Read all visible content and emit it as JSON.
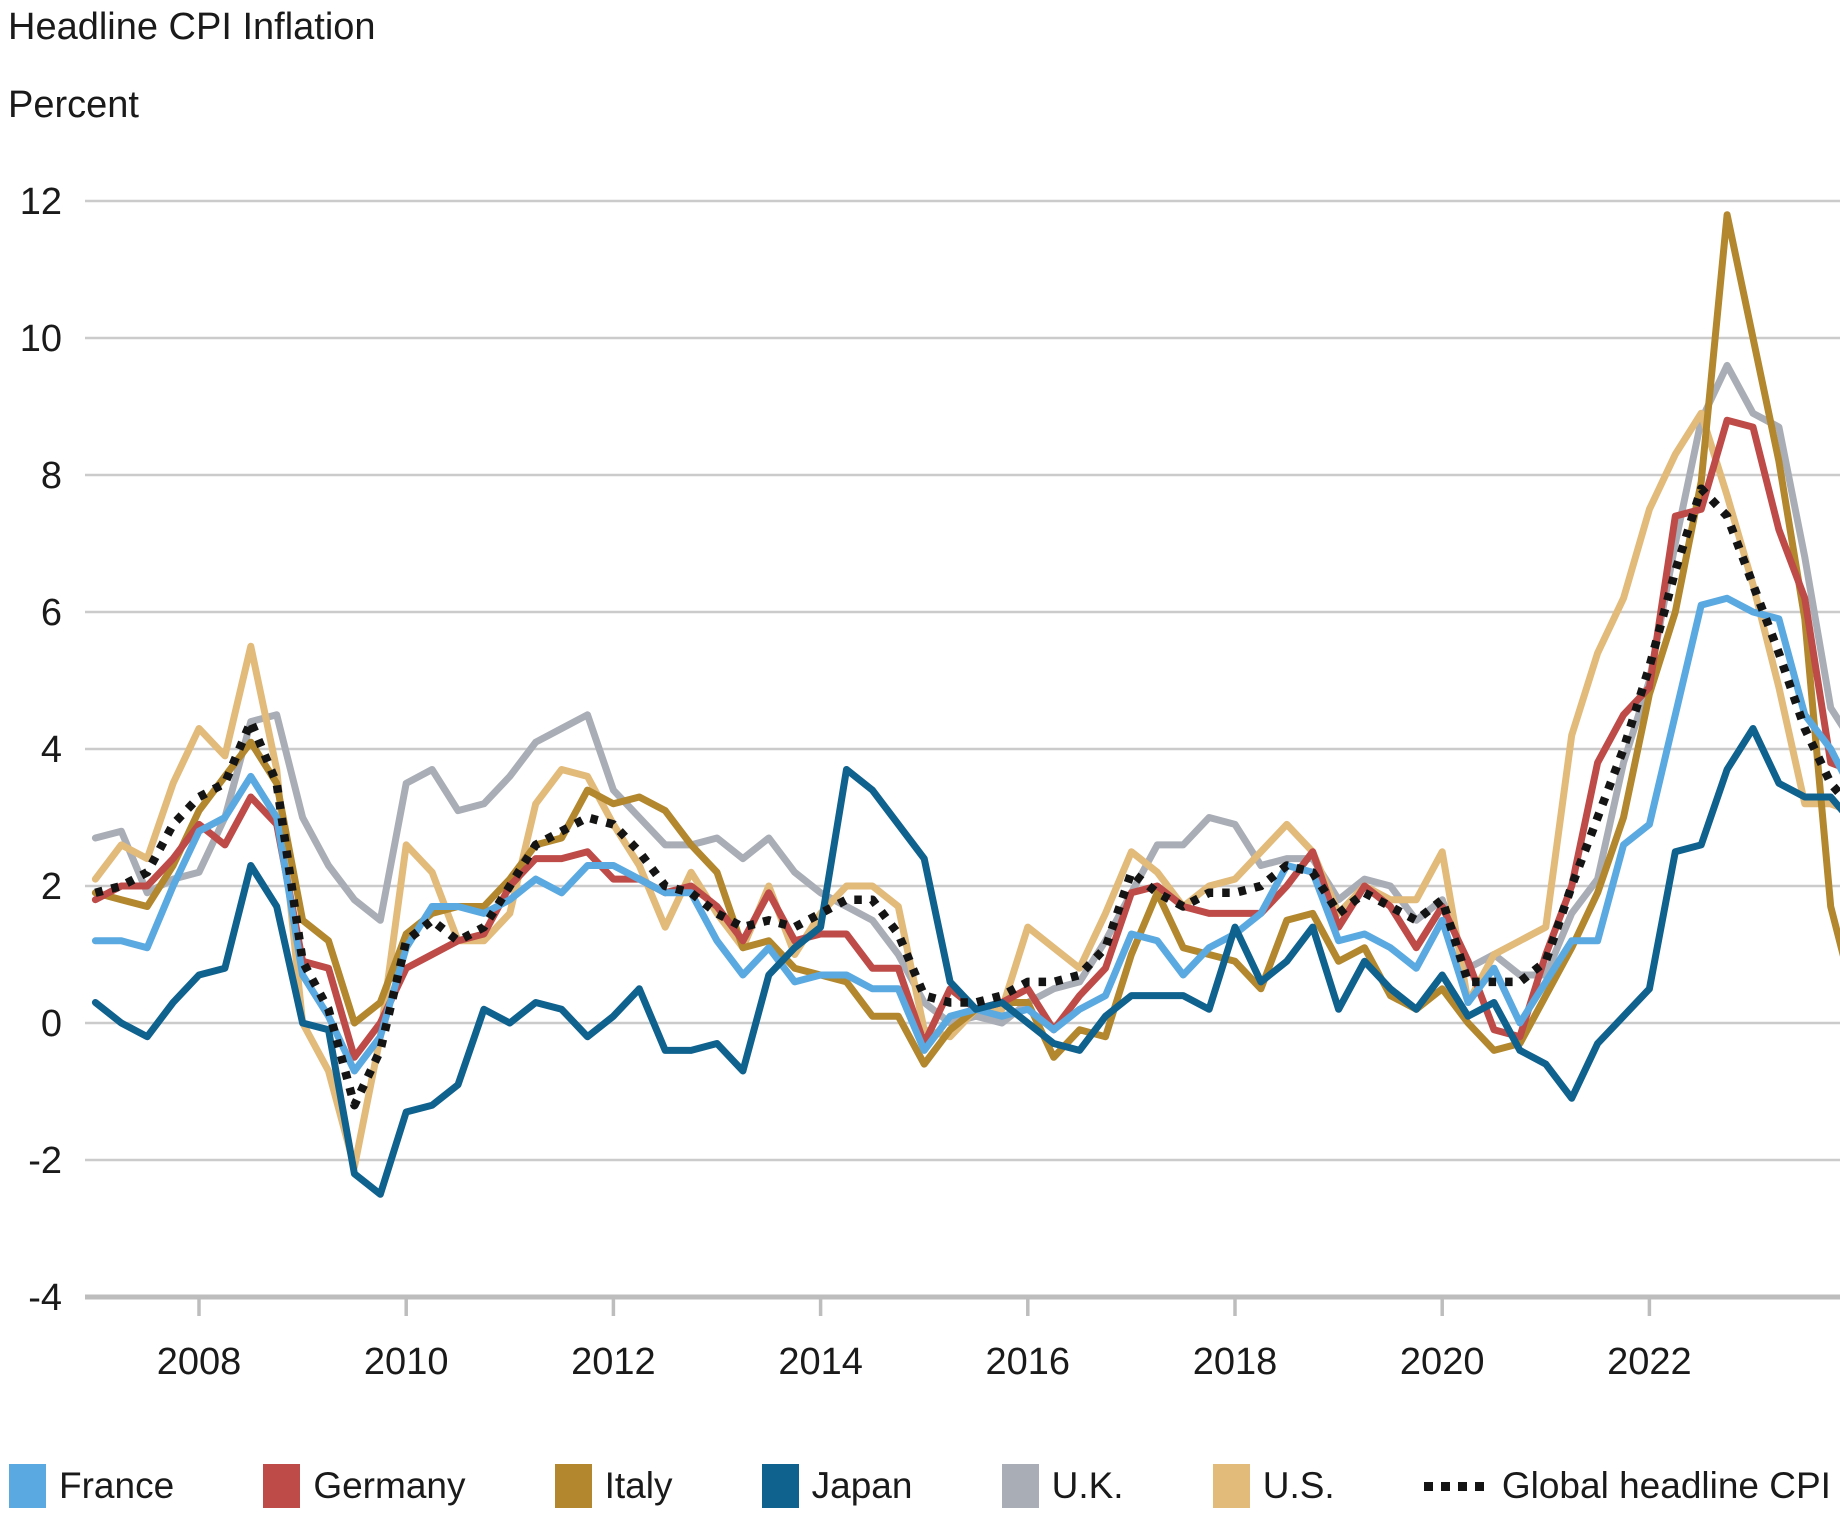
{
  "header": {
    "title": "Headline CPI Inflation",
    "y_axis_unit": "Percent"
  },
  "chart_data": {
    "type": "line",
    "title": "Headline CPI Inflation",
    "ylabel": "Percent",
    "grid": "horizontal",
    "legend_position": "bottom",
    "x_range": [
      2006.9,
      2023.92
    ],
    "y_range": [
      -4,
      12
    ],
    "y_ticks": [
      12,
      10,
      8,
      6,
      4,
      2,
      0,
      -2,
      -4
    ],
    "x_label_years": [
      2008,
      2010,
      2012,
      2014,
      2016,
      2018,
      2020,
      2022
    ],
    "x": [
      2007.0,
      2007.25,
      2007.5,
      2007.75,
      2008.0,
      2008.25,
      2008.5,
      2008.75,
      2009.0,
      2009.25,
      2009.5,
      2009.75,
      2010.0,
      2010.25,
      2010.5,
      2010.75,
      2011.0,
      2011.25,
      2011.5,
      2011.75,
      2012.0,
      2012.25,
      2012.5,
      2012.75,
      2013.0,
      2013.25,
      2013.5,
      2013.75,
      2014.0,
      2014.25,
      2014.5,
      2014.75,
      2015.0,
      2015.25,
      2015.5,
      2015.75,
      2016.0,
      2016.25,
      2016.5,
      2016.75,
      2017.0,
      2017.25,
      2017.5,
      2017.75,
      2018.0,
      2018.25,
      2018.5,
      2018.75,
      2019.0,
      2019.25,
      2019.5,
      2019.75,
      2020.0,
      2020.25,
      2020.5,
      2020.75,
      2021.0,
      2021.25,
      2021.5,
      2021.75,
      2022.0,
      2022.25,
      2022.5,
      2022.75,
      2023.0,
      2023.25,
      2023.5,
      2023.75,
      2023.92
    ],
    "series": [
      {
        "name": "France",
        "color": "#5AA9E0",
        "dashed": false,
        "values": [
          1.2,
          1.2,
          1.1,
          2.0,
          2.8,
          3.0,
          3.6,
          3.0,
          0.7,
          0.1,
          -0.7,
          -0.2,
          1.1,
          1.7,
          1.7,
          1.6,
          1.8,
          2.1,
          1.9,
          2.3,
          2.3,
          2.1,
          1.9,
          1.9,
          1.2,
          0.7,
          1.1,
          0.6,
          0.7,
          0.7,
          0.5,
          0.5,
          -0.4,
          0.1,
          0.2,
          0.1,
          0.2,
          -0.1,
          0.2,
          0.4,
          1.3,
          1.2,
          0.7,
          1.1,
          1.3,
          1.6,
          2.3,
          2.2,
          1.2,
          1.3,
          1.1,
          0.8,
          1.5,
          0.3,
          0.8,
          0.0,
          0.6,
          1.2,
          1.2,
          2.6,
          2.9,
          4.5,
          6.1,
          6.2,
          6.0,
          5.9,
          4.5,
          4.0,
          3.5
        ]
      },
      {
        "name": "Germany",
        "color": "#BE4B48",
        "dashed": false,
        "values": [
          1.8,
          2.0,
          2.0,
          2.4,
          2.9,
          2.6,
          3.3,
          2.9,
          0.9,
          0.8,
          -0.5,
          0.0,
          0.8,
          1.0,
          1.2,
          1.3,
          2.0,
          2.4,
          2.4,
          2.5,
          2.1,
          2.1,
          1.9,
          2.0,
          1.7,
          1.2,
          1.9,
          1.2,
          1.3,
          1.3,
          0.8,
          0.8,
          -0.3,
          0.5,
          0.2,
          0.3,
          0.5,
          -0.1,
          0.4,
          0.8,
          1.9,
          2.0,
          1.7,
          1.6,
          1.6,
          1.6,
          2.0,
          2.5,
          1.4,
          2.0,
          1.7,
          1.1,
          1.7,
          0.9,
          -0.1,
          -0.2,
          1.0,
          2.0,
          3.8,
          4.5,
          4.9,
          7.4,
          7.5,
          8.8,
          8.7,
          7.2,
          6.2,
          3.8,
          3.7
        ]
      },
      {
        "name": "Italy",
        "color": "#B2872D",
        "dashed": false,
        "values": [
          1.9,
          1.8,
          1.7,
          2.3,
          3.1,
          3.6,
          4.1,
          3.5,
          1.5,
          1.2,
          0.0,
          0.3,
          1.3,
          1.6,
          1.7,
          1.7,
          2.1,
          2.6,
          2.7,
          3.4,
          3.2,
          3.3,
          3.1,
          2.6,
          2.2,
          1.1,
          1.2,
          0.8,
          0.7,
          0.6,
          0.1,
          0.1,
          -0.6,
          -0.1,
          0.2,
          0.3,
          0.3,
          -0.5,
          -0.1,
          -0.2,
          1.0,
          1.9,
          1.1,
          1.0,
          0.9,
          0.5,
          1.5,
          1.6,
          0.9,
          1.1,
          0.4,
          0.2,
          0.5,
          0.0,
          -0.4,
          -0.3,
          0.4,
          1.1,
          1.9,
          3.0,
          4.8,
          6.0,
          7.9,
          11.8,
          10.0,
          8.2,
          5.9,
          1.7,
          0.7
        ]
      },
      {
        "name": "Japan",
        "color": "#0F618E",
        "dashed": false,
        "values": [
          0.3,
          0.0,
          -0.2,
          0.3,
          0.7,
          0.8,
          2.3,
          1.7,
          0.0,
          -0.1,
          -2.2,
          -2.5,
          -1.3,
          -1.2,
          -0.9,
          0.2,
          0.0,
          0.3,
          0.2,
          -0.2,
          0.1,
          0.5,
          -0.4,
          -0.4,
          -0.3,
          -0.7,
          0.7,
          1.1,
          1.4,
          3.7,
          3.4,
          2.9,
          2.4,
          0.6,
          0.2,
          0.3,
          0.0,
          -0.3,
          -0.4,
          0.1,
          0.4,
          0.4,
          0.4,
          0.2,
          1.4,
          0.6,
          0.9,
          1.4,
          0.2,
          0.9,
          0.5,
          0.2,
          0.7,
          0.1,
          0.3,
          -0.4,
          -0.6,
          -1.1,
          -0.3,
          0.1,
          0.5,
          2.5,
          2.6,
          3.7,
          4.3,
          3.5,
          3.3,
          3.3,
          3.0
        ]
      },
      {
        "name": "U.K.",
        "color": "#A9ADB5",
        "dashed": false,
        "values": [
          2.7,
          2.8,
          1.9,
          2.1,
          2.2,
          3.0,
          4.4,
          4.5,
          3.0,
          2.3,
          1.8,
          1.5,
          3.5,
          3.7,
          3.1,
          3.2,
          3.6,
          4.1,
          4.3,
          4.5,
          3.4,
          3.0,
          2.6,
          2.6,
          2.7,
          2.4,
          2.7,
          2.2,
          1.9,
          1.7,
          1.5,
          1.0,
          0.3,
          0.0,
          0.1,
          0.0,
          0.3,
          0.5,
          0.6,
          1.2,
          1.9,
          2.6,
          2.6,
          3.0,
          2.9,
          2.3,
          2.4,
          2.4,
          1.8,
          2.1,
          2.0,
          1.5,
          1.8,
          0.8,
          1.0,
          0.7,
          0.7,
          1.6,
          2.1,
          3.8,
          5.0,
          7.0,
          8.8,
          9.6,
          8.9,
          8.7,
          6.8,
          4.6,
          4.2
        ]
      },
      {
        "name": "U.S.",
        "color": "#E2BA7A",
        "dashed": false,
        "values": [
          2.1,
          2.6,
          2.4,
          3.5,
          4.3,
          3.9,
          5.5,
          3.7,
          0.0,
          -0.7,
          -2.1,
          -0.2,
          2.6,
          2.2,
          1.2,
          1.2,
          1.6,
          3.2,
          3.7,
          3.6,
          2.9,
          2.3,
          1.4,
          2.2,
          1.6,
          1.1,
          2.0,
          1.0,
          1.6,
          2.0,
          2.0,
          1.7,
          -0.1,
          -0.2,
          0.2,
          0.2,
          1.4,
          1.1,
          0.8,
          1.6,
          2.5,
          2.2,
          1.7,
          2.0,
          2.1,
          2.5,
          2.9,
          2.5,
          1.6,
          2.0,
          1.8,
          1.8,
          2.5,
          0.3,
          1.0,
          1.2,
          1.4,
          4.2,
          5.4,
          6.2,
          7.5,
          8.3,
          8.9,
          7.7,
          6.4,
          4.9,
          3.2,
          3.2,
          3.1
        ]
      },
      {
        "name": "Global headline CPI",
        "color": "#141414",
        "dashed": true,
        "values": [
          1.9,
          2.0,
          2.2,
          2.9,
          3.3,
          3.5,
          4.4,
          3.5,
          0.9,
          0.2,
          -1.2,
          -0.4,
          1.2,
          1.5,
          1.2,
          1.4,
          2.0,
          2.6,
          2.8,
          3.0,
          2.9,
          2.5,
          2.0,
          1.9,
          1.6,
          1.4,
          1.5,
          1.4,
          1.6,
          1.8,
          1.8,
          1.3,
          0.4,
          0.3,
          0.3,
          0.4,
          0.6,
          0.6,
          0.7,
          1.1,
          2.2,
          1.9,
          1.7,
          1.9,
          1.9,
          2.0,
          2.3,
          2.2,
          1.6,
          1.9,
          1.7,
          1.5,
          1.8,
          0.6,
          0.6,
          0.6,
          0.9,
          2.0,
          3.0,
          4.0,
          5.2,
          6.6,
          7.8,
          7.4,
          6.4,
          5.4,
          4.3,
          3.5,
          3.2
        ]
      }
    ]
  }
}
